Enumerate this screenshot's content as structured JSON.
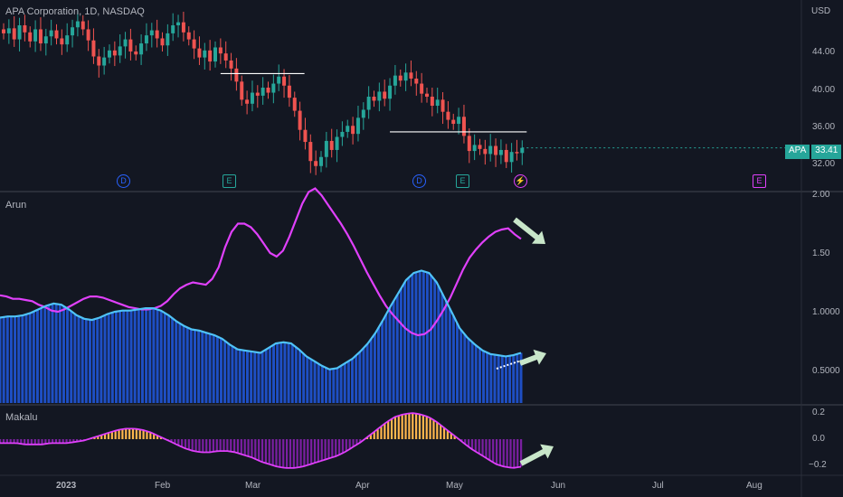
{
  "header": {
    "title": "APA Corporation, 1D, NASDAQ"
  },
  "price_axis": {
    "currency": "USD",
    "ticks": [
      "44.00",
      "40.00",
      "36.00",
      "32.00"
    ]
  },
  "last_price": {
    "symbol": "APA",
    "value": "33.41",
    "color": "#26a69a"
  },
  "events": [
    {
      "symbol": "D",
      "kind": "dividend"
    },
    {
      "symbol": "E",
      "kind": "earnings"
    },
    {
      "symbol": "D",
      "kind": "dividend"
    },
    {
      "symbol": "E",
      "kind": "earnings"
    },
    {
      "symbol": "⚡",
      "kind": "split"
    },
    {
      "symbol": "E",
      "kind": "earnings-upcoming"
    }
  ],
  "arun_pane": {
    "label": "Arun",
    "ticks": [
      "2.00",
      "1.50",
      "1.0000",
      "0.5000"
    ]
  },
  "makalu_pane": {
    "label": "Makalu",
    "ticks": [
      "0.2",
      "0.0",
      "−0.2"
    ]
  },
  "time_axis": {
    "labels": [
      "2023",
      "Feb",
      "Mar",
      "Apr",
      "May",
      "Jun",
      "Jul",
      "Aug"
    ]
  },
  "colors": {
    "up": "#26a69a",
    "down": "#ef5350",
    "magenta": "#e040fb",
    "cyan": "#4fc3f7",
    "blue_hist": "#1e4fc4",
    "orange": "#ffb74d",
    "purple": "#7b1fa2",
    "arrow": "#c8e6c9"
  },
  "chart_data": [
    {
      "type": "candlestick",
      "title": "APA Corporation, 1D, NASDAQ",
      "ylabel": "USD",
      "ylim": [
        30.5,
        46.5
      ],
      "close": [
        44.8,
        45.3,
        44.2,
        45.6,
        44.9,
        44.0,
        45.2,
        43.8,
        44.5,
        45.1,
        44.3,
        43.7,
        44.6,
        45.4,
        46.0,
        45.2,
        44.1,
        42.5,
        41.6,
        42.4,
        43.1,
        42.6,
        43.5,
        44.2,
        43.0,
        42.7,
        43.8,
        44.6,
        45.1,
        44.3,
        43.6,
        44.8,
        45.6,
        45.9,
        44.9,
        44.2,
        43.3,
        42.4,
        43.1,
        42.0,
        43.4,
        42.8,
        42.1,
        41.3,
        40.0,
        38.2,
        37.8,
        38.9,
        38.6,
        39.4,
        38.9,
        39.8,
        40.5,
        39.6,
        38.4,
        37.1,
        35.2,
        34.0,
        32.1,
        31.6,
        32.5,
        34.1,
        33.2,
        34.5,
        35.0,
        35.6,
        34.8,
        36.4,
        37.2,
        38.5,
        38.1,
        39.0,
        38.3,
        39.6,
        40.6,
        40.1,
        40.9,
        40.3,
        39.8,
        38.8,
        38.5,
        37.6,
        38.2,
        37.0,
        36.2,
        35.8,
        36.5,
        34.6,
        33.1,
        33.7,
        33.3,
        32.8,
        33.6,
        32.7,
        33.2,
        32.0,
        33.0,
        32.9,
        33.41
      ],
      "support_lines": [
        {
          "from_index": 41,
          "to_index": 56,
          "price": 40.8
        },
        {
          "from_index": 73,
          "to_index": 98,
          "price": 35.0
        }
      ]
    },
    {
      "type": "line",
      "title": "Arun",
      "ylim": [
        0.05,
        2.05
      ],
      "series": [
        {
          "color": "#e040fb",
          "values": [
            1.14,
            1.13,
            1.11,
            1.11,
            1.1,
            1.09,
            1.06,
            1.04,
            1.01,
            1.0,
            1.02,
            1.05,
            1.08,
            1.11,
            1.13,
            1.13,
            1.12,
            1.1,
            1.08,
            1.06,
            1.04,
            1.03,
            1.02,
            1.02,
            1.03,
            1.05,
            1.09,
            1.15,
            1.2,
            1.23,
            1.25,
            1.24,
            1.23,
            1.28,
            1.38,
            1.55,
            1.68,
            1.75,
            1.75,
            1.72,
            1.66,
            1.58,
            1.5,
            1.47,
            1.52,
            1.64,
            1.78,
            1.92,
            2.02,
            2.05,
            1.99,
            1.91,
            1.83,
            1.75,
            1.66,
            1.56,
            1.45,
            1.34,
            1.24,
            1.14,
            1.05,
            0.98,
            0.92,
            0.86,
            0.82,
            0.8,
            0.81,
            0.85,
            0.93,
            1.02,
            1.12,
            1.24,
            1.36,
            1.46,
            1.53,
            1.59,
            1.64,
            1.68,
            1.7,
            1.71,
            1.66,
            1.62
          ]
        },
        {
          "color": "#4fc3f7",
          "values": [
            0.95,
            0.96,
            0.96,
            0.97,
            0.99,
            1.02,
            1.05,
            1.07,
            1.06,
            1.02,
            0.97,
            0.94,
            0.93,
            0.95,
            0.98,
            1.0,
            1.01,
            1.01,
            1.02,
            1.03,
            1.03,
            1.01,
            0.97,
            0.92,
            0.88,
            0.85,
            0.84,
            0.82,
            0.8,
            0.77,
            0.72,
            0.68,
            0.67,
            0.66,
            0.65,
            0.69,
            0.73,
            0.74,
            0.73,
            0.68,
            0.62,
            0.58,
            0.54,
            0.51,
            0.52,
            0.56,
            0.6,
            0.66,
            0.73,
            0.82,
            0.93,
            1.05,
            1.16,
            1.27,
            1.33,
            1.35,
            1.33,
            1.25,
            1.12,
            0.99,
            0.86,
            0.78,
            0.72,
            0.67,
            0.64,
            0.63,
            0.62,
            0.63,
            0.65
          ]
        }
      ]
    },
    {
      "type": "bar",
      "title": "Makalu",
      "ylim": [
        -0.28,
        0.28
      ],
      "values": [
        -0.03,
        -0.03,
        -0.03,
        -0.04,
        -0.04,
        -0.04,
        -0.03,
        -0.03,
        -0.03,
        -0.02,
        -0.01,
        0.01,
        0.03,
        0.05,
        0.07,
        0.08,
        0.08,
        0.07,
        0.05,
        0.02,
        -0.01,
        -0.04,
        -0.07,
        -0.09,
        -0.1,
        -0.1,
        -0.09,
        -0.09,
        -0.1,
        -0.12,
        -0.14,
        -0.17,
        -0.19,
        -0.21,
        -0.22,
        -0.22,
        -0.21,
        -0.19,
        -0.17,
        -0.15,
        -0.13,
        -0.1,
        -0.06,
        -0.02,
        0.03,
        0.08,
        0.13,
        0.17,
        0.19,
        0.2,
        0.19,
        0.17,
        0.13,
        0.08,
        0.03,
        -0.02,
        -0.07,
        -0.11,
        -0.15,
        -0.19,
        -0.21,
        -0.22,
        -0.21
      ]
    }
  ]
}
